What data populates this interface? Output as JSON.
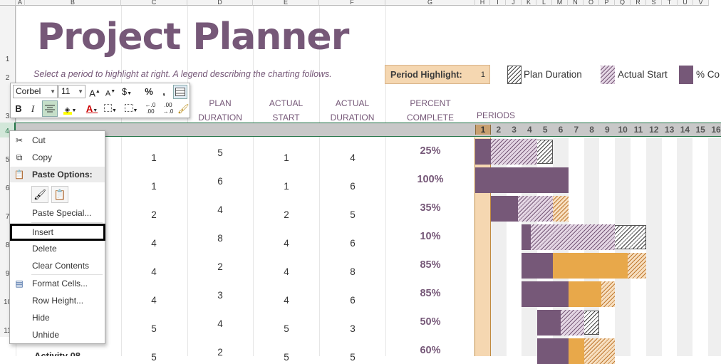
{
  "columns": [
    "A",
    "B",
    "C",
    "D",
    "E",
    "F",
    "G",
    "H",
    "I",
    "J",
    "K",
    "L",
    "M",
    "N",
    "O",
    "P",
    "Q",
    "R",
    "S",
    "T",
    "U",
    "V"
  ],
  "rows": [
    "1",
    "2",
    "3",
    "4",
    "5",
    "6",
    "7",
    "8",
    "9",
    "10",
    "11"
  ],
  "title": "Project Planner",
  "subtitle": "Select a period to highlight at right.  A legend describing the charting follows.",
  "period_highlight": {
    "label": "Period Highlight:",
    "value": "1"
  },
  "legend": {
    "plan": "Plan Duration",
    "actual": "Actual Start",
    "complete": "% Co"
  },
  "headers": {
    "plan_duration": [
      "PLAN",
      "DURATION"
    ],
    "actual_start": [
      "ACTUAL",
      "START"
    ],
    "actual_duration": [
      "ACTUAL",
      "DURATION"
    ],
    "percent_complete": [
      "PERCENT",
      "COMPLETE"
    ],
    "periods": "PERIODS"
  },
  "periods": [
    "1",
    "2",
    "3",
    "4",
    "5",
    "6",
    "7",
    "8",
    "9",
    "10",
    "11",
    "12",
    "13",
    "14",
    "15",
    "16"
  ],
  "activities": [
    {
      "plan_start": "1",
      "plan_duration": "5",
      "actual_start": "1",
      "actual_duration": "4",
      "percent": "25%",
      "pct_value": 0.25
    },
    {
      "plan_start": "1",
      "plan_duration": "6",
      "actual_start": "1",
      "actual_duration": "6",
      "percent": "100%",
      "pct_value": 1.0
    },
    {
      "plan_start": "2",
      "plan_duration": "4",
      "actual_start": "2",
      "actual_duration": "5",
      "percent": "35%",
      "pct_value": 0.35
    },
    {
      "plan_start": "4",
      "plan_duration": "8",
      "actual_start": "4",
      "actual_duration": "6",
      "percent": "10%",
      "pct_value": 0.1
    },
    {
      "plan_start": "4",
      "plan_duration": "2",
      "actual_start": "4",
      "actual_duration": "8",
      "percent": "85%",
      "pct_value": 0.85
    },
    {
      "plan_start": "4",
      "plan_duration": "3",
      "actual_start": "4",
      "actual_duration": "6",
      "percent": "85%",
      "pct_value": 0.85
    },
    {
      "plan_start": "5",
      "plan_duration": "4",
      "actual_start": "5",
      "actual_duration": "3",
      "percent": "50%",
      "pct_value": 0.5
    },
    {
      "plan_start": "5",
      "plan_duration": "2",
      "actual_start": "5",
      "actual_duration": "5",
      "percent": "60%",
      "pct_value": 0.6
    }
  ],
  "partial_row_label": "Activity 08",
  "toolbar": {
    "font": "Corbel",
    "size": "11",
    "bold": "B",
    "italic": "I",
    "increase_font": "A",
    "decrease_font": "A",
    "currency": "$",
    "percent": "%",
    "comma": ",",
    "font_color_glyph": "A"
  },
  "context_menu": {
    "cut": "Cut",
    "copy": "Copy",
    "paste_options": "Paste Options:",
    "paste_special": "Paste Special...",
    "insert": "Insert",
    "delete": "Delete",
    "clear_contents": "Clear Contents",
    "format_cells": "Format Cells...",
    "row_height": "Row Height...",
    "hide": "Hide",
    "unhide": "Unhide"
  },
  "colors": {
    "accent": "#765878",
    "highlight": "#f5d7b1",
    "beyond": "#e8a84a",
    "selection": "#217346"
  }
}
